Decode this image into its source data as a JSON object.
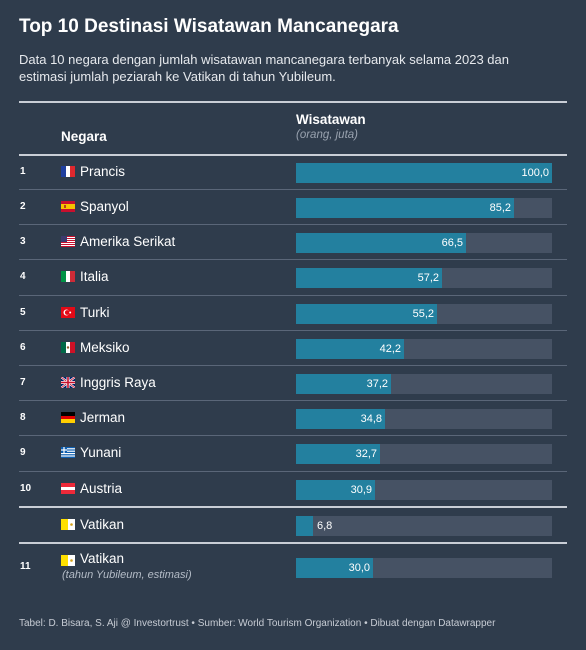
{
  "title": "Top 10 Destinasi Wisatawan Mancanegara",
  "subtitle": "Data 10 negara dengan jumlah wisatawan mancanegara terbanyak selama 2023 dan estimasi jumlah peziarah ke Vatikan di tahun Yubileum.",
  "columns": {
    "country": "Negara",
    "value": "Wisatawan",
    "value_unit": "(orang, juta)"
  },
  "footer": "Tabel: D. Bisara, S. Aji @ Investortrust • Sumber: World Tourism Organization • Dibuat dengan Datawrapper",
  "colors": {
    "background": "#2f3c4c",
    "bar": "#23809f",
    "track": "#465264"
  },
  "chart_data": {
    "type": "table",
    "max": 100,
    "rows": [
      {
        "rank": "1",
        "country": "Prancis",
        "flag": "france-flag-icon",
        "value": 100.0,
        "label": "100,0"
      },
      {
        "rank": "2",
        "country": "Spanyol",
        "flag": "spain-flag-icon",
        "value": 85.2,
        "label": "85,2"
      },
      {
        "rank": "3",
        "country": "Amerika Serikat",
        "flag": "usa-flag-icon",
        "value": 66.5,
        "label": "66,5"
      },
      {
        "rank": "4",
        "country": "Italia",
        "flag": "italy-flag-icon",
        "value": 57.2,
        "label": "57,2"
      },
      {
        "rank": "5",
        "country": "Turki",
        "flag": "turkey-flag-icon",
        "value": 55.2,
        "label": "55,2"
      },
      {
        "rank": "6",
        "country": "Meksiko",
        "flag": "mexico-flag-icon",
        "value": 42.2,
        "label": "42,2"
      },
      {
        "rank": "7",
        "country": "Inggris Raya",
        "flag": "uk-flag-icon",
        "value": 37.2,
        "label": "37,2"
      },
      {
        "rank": "8",
        "country": "Jerman",
        "flag": "germany-flag-icon",
        "value": 34.8,
        "label": "34,8"
      },
      {
        "rank": "9",
        "country": "Yunani",
        "flag": "greece-flag-icon",
        "value": 32.7,
        "label": "32,7"
      },
      {
        "rank": "10",
        "country": "Austria",
        "flag": "austria-flag-icon",
        "value": 30.9,
        "label": "30,9"
      },
      {
        "rank": "",
        "country": "Vatikan",
        "flag": "vatican-flag-icon",
        "value": 6.8,
        "label": "6,8"
      },
      {
        "rank": "11",
        "country": "Vatikan",
        "note": "(tahun Yubileum, estimasi)",
        "flag": "vatican-flag-icon",
        "value": 30.0,
        "label": "30,0"
      }
    ]
  }
}
